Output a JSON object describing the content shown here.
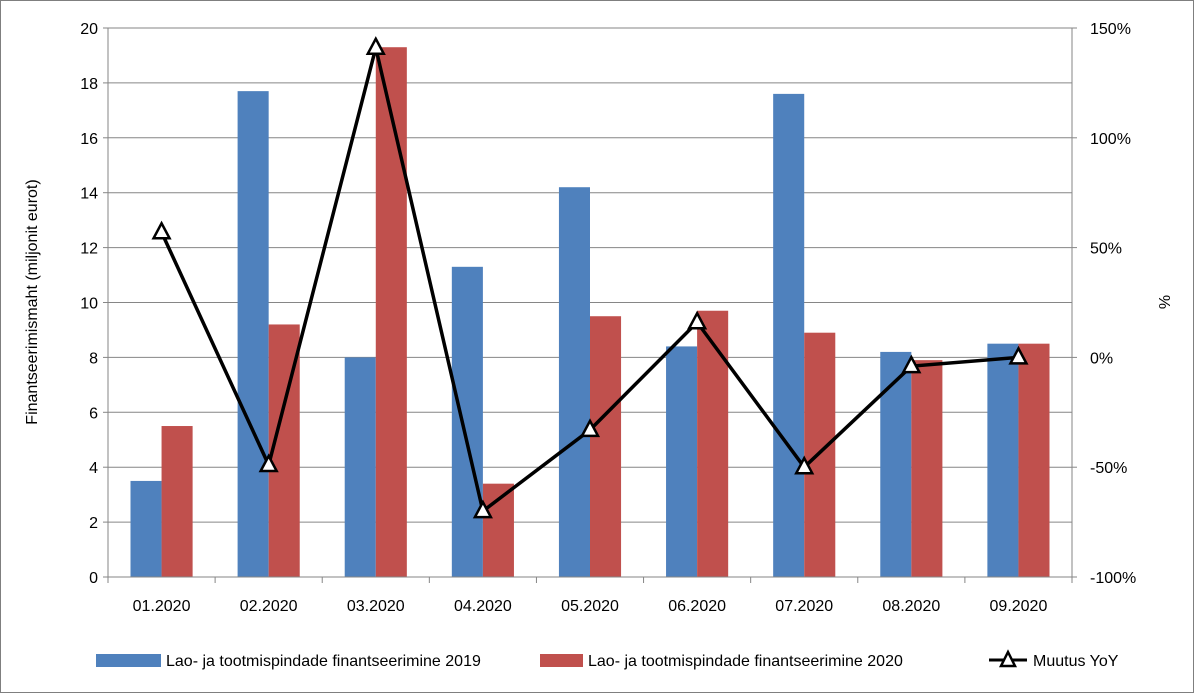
{
  "chart_data": {
    "type": "bar",
    "categories": [
      "01.2020",
      "02.2020",
      "03.2020",
      "04.2020",
      "05.2020",
      "06.2020",
      "07.2020",
      "08.2020",
      "09.2020"
    ],
    "series": [
      {
        "name": "Lao- ja tootmispindade  finantseerimine 2019",
        "type": "bar",
        "axis": "left",
        "color": "#4f81bd",
        "values": [
          3.5,
          17.7,
          8.0,
          11.3,
          14.2,
          8.4,
          17.6,
          8.2,
          8.5
        ]
      },
      {
        "name": "Lao- ja tootmispindade  finantseerimine 2020",
        "type": "bar",
        "axis": "left",
        "color": "#c0504d",
        "values": [
          5.5,
          9.2,
          19.3,
          3.4,
          9.5,
          9.7,
          8.9,
          7.9,
          8.5
        ]
      },
      {
        "name": "Muutus YoY",
        "type": "line",
        "axis": "right",
        "color": "#000000",
        "marker": "triangle",
        "values": [
          57,
          -49,
          141,
          -70,
          -33,
          16,
          -50,
          -4,
          0
        ]
      }
    ],
    "ylabel": "Finantseerimismaht (miljonit eurot)",
    "y2label": "%",
    "ylim": [
      0,
      20
    ],
    "yticks": [
      "0",
      "2",
      "4",
      "6",
      "8",
      "10",
      "12",
      "14",
      "16",
      "18",
      "20"
    ],
    "y2lim": [
      -100,
      150
    ],
    "y2ticks": [
      "-100%",
      "-50%",
      "0%",
      "50%",
      "100%",
      "150%"
    ],
    "grid": true,
    "legend": "bottom"
  }
}
